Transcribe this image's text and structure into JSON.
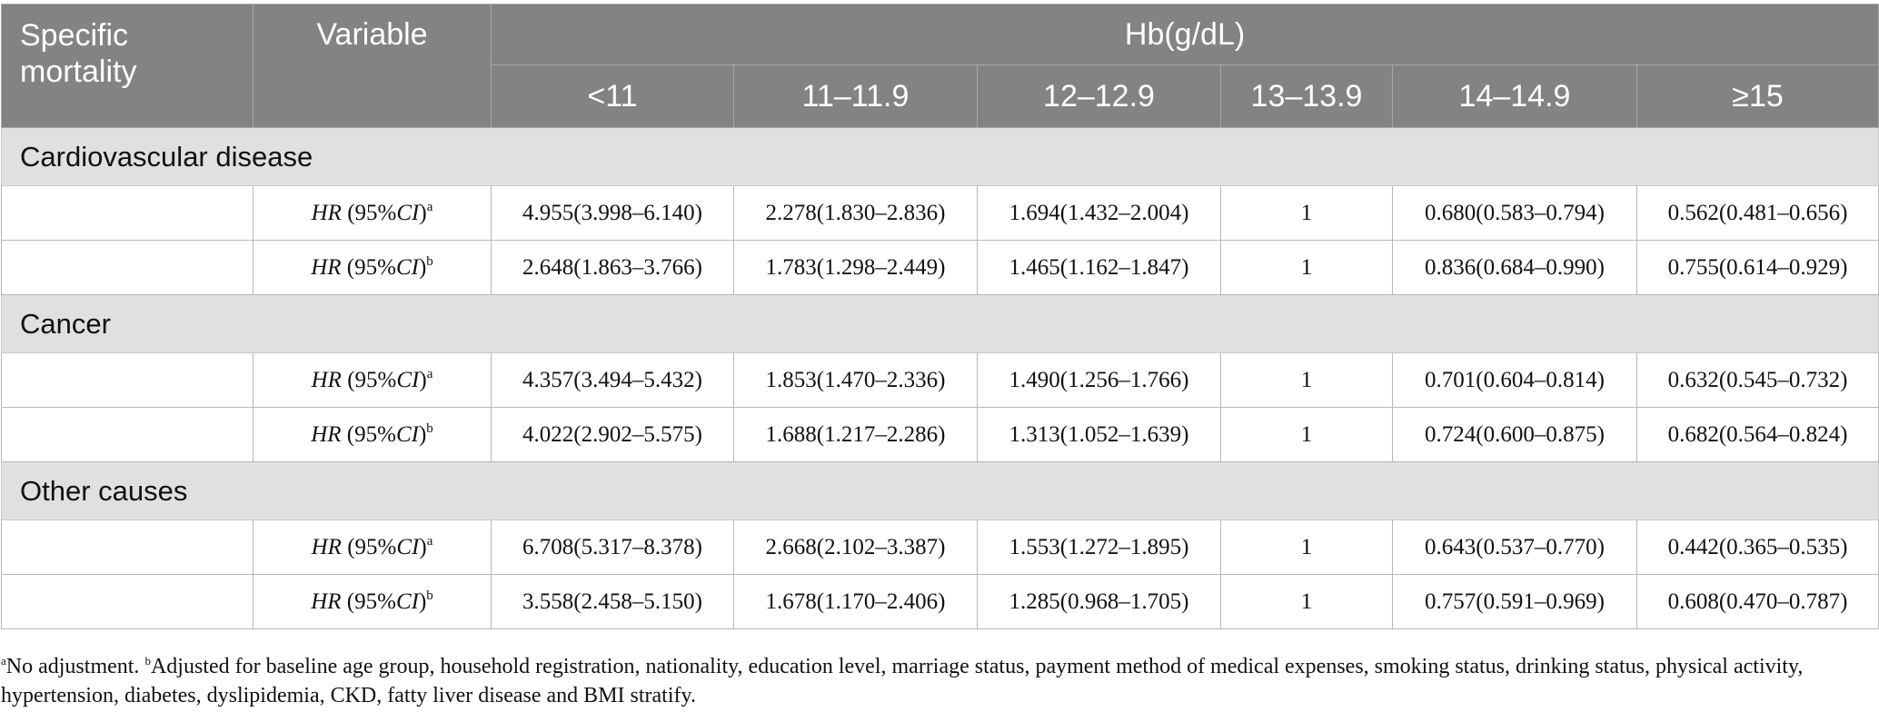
{
  "header": {
    "specific_mortality": "Specific\nmortality",
    "variable": "Variable",
    "hb": "Hb(g/dL)",
    "bins": [
      "<11",
      "11–11.9",
      "12–12.9",
      "13–13.9",
      "14–14.9",
      "≥15"
    ]
  },
  "hr_label": {
    "prefix": "HR",
    "ci_open": " (95%",
    "ci": "CI",
    "ci_close": ")"
  },
  "sections": [
    {
      "title": "Cardiovascular disease",
      "rows": [
        {
          "sup": "a",
          "values": [
            "4.955(3.998–6.140)",
            "2.278(1.830–2.836)",
            "1.694(1.432–2.004)",
            "1",
            "0.680(0.583–0.794)",
            "0.562(0.481–0.656)"
          ]
        },
        {
          "sup": "b",
          "values": [
            "2.648(1.863–3.766)",
            "1.783(1.298–2.449)",
            "1.465(1.162–1.847)",
            "1",
            "0.836(0.684–0.990)",
            "0.755(0.614–0.929)"
          ]
        }
      ]
    },
    {
      "title": "Cancer",
      "rows": [
        {
          "sup": "a",
          "values": [
            "4.357(3.494–5.432)",
            "1.853(1.470–2.336)",
            "1.490(1.256–1.766)",
            "1",
            "0.701(0.604–0.814)",
            "0.632(0.545–0.732)"
          ]
        },
        {
          "sup": "b",
          "values": [
            "4.022(2.902–5.575)",
            "1.688(1.217–2.286)",
            "1.313(1.052–1.639)",
            "1",
            "0.724(0.600–0.875)",
            "0.682(0.564–0.824)"
          ]
        }
      ]
    },
    {
      "title": "Other causes",
      "rows": [
        {
          "sup": "a",
          "values": [
            "6.708(5.317–8.378)",
            "2.668(2.102–3.387)",
            "1.553(1.272–1.895)",
            "1",
            "0.643(0.537–0.770)",
            "0.442(0.365–0.535)"
          ]
        },
        {
          "sup": "b",
          "values": [
            "3.558(2.458–5.150)",
            "1.678(1.170–2.406)",
            "1.285(0.968–1.705)",
            "1",
            "0.757(0.591–0.969)",
            "0.608(0.470–0.787)"
          ]
        }
      ]
    }
  ],
  "footnote": {
    "a_mark": "a",
    "a_text": "No adjustment. ",
    "b_mark": "b",
    "b_text": "Adjusted for baseline age group, household registration, nationality, education level, marriage status, payment method of medical expenses, smoking status, drinking status, physical activity, hypertension, diabetes, dyslipidemia, CKD, fatty liver disease and BMI stratify."
  },
  "colors": {
    "header_bg": "#828382",
    "section_bg": "#e0e0e0",
    "text": "#111111"
  }
}
